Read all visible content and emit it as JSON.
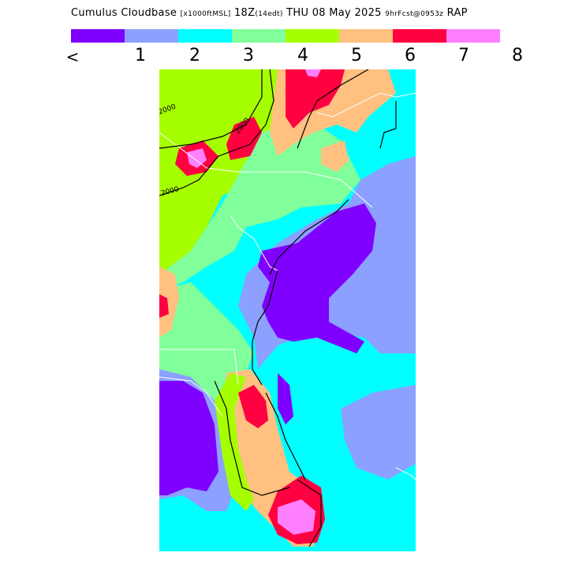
{
  "title": {
    "parameter": "Cumulus Cloudbase",
    "units": "[x1000ftMSL]",
    "valid": "18Z",
    "local": "(14edt)",
    "date": "THU 08 May 2025",
    "forecast": "9hrFcst@0953z",
    "model": "RAP"
  },
  "legend": {
    "colors": [
      "#8000ff",
      "#8ca0ff",
      "#00ffff",
      "#80ff9a",
      "#a6ff00",
      "#ffc080",
      "#ff0040",
      "#ff80ff"
    ],
    "ticks": [
      "<",
      "1",
      "2",
      "3",
      "4",
      "5",
      "6",
      "7",
      "8"
    ]
  },
  "map": {
    "region": "Southeastern United States",
    "contour_labels": [
      "2000",
      "2000",
      "2000"
    ],
    "contour_label_units": "ft",
    "outline_colors": {
      "state_borders": "#ffffff",
      "contours": "#000000"
    }
  }
}
